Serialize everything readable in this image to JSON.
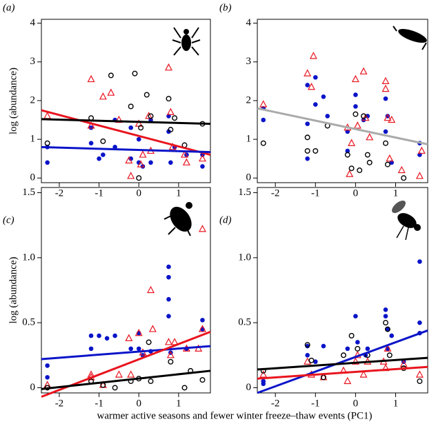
{
  "xlabel": "warmer active seasons and fewer winter freeze–thaw events (PC1)",
  "chart_data": [
    {
      "type": "scatter",
      "title": "(a)",
      "ylabel": "log (abundance)",
      "xlim": [
        -2.45,
        1.8
      ],
      "ylim": [
        -0.12,
        4.1
      ],
      "xticks": [
        -2,
        -1,
        0,
        1
      ],
      "yticks": [
        0,
        1,
        2,
        3,
        4
      ],
      "series": [
        {
          "marker": "circle-filled",
          "color": "#0a14c8",
          "x": [
            -2.3,
            -2.3,
            -1.2,
            -1.2,
            -1.0,
            -0.9,
            -0.6,
            -0.6,
            -0.2,
            -0.2,
            0,
            0,
            0.1,
            0.3,
            0.3,
            0.75,
            0.75,
            0.8,
            0.9,
            1.2,
            1.6,
            1.6
          ],
          "values": [
            0.8,
            0.4,
            1.3,
            0.9,
            0.5,
            0.6,
            0.8,
            1.5,
            1.3,
            0.5,
            1.0,
            0.4,
            0.3,
            1.5,
            0.4,
            1.6,
            1.2,
            0.4,
            0.8,
            0.6,
            0.3,
            0.6
          ]
        },
        {
          "marker": "triangle",
          "color": "#e8141e",
          "x": [
            -2.3,
            -1.2,
            -1.2,
            -0.9,
            -0.7,
            -0.5,
            -0.25,
            -0.2,
            0,
            0.1,
            0.25,
            0.3,
            0.75,
            0.8,
            0.85,
            1.15,
            1.2,
            1.6,
            0.05
          ],
          "values": [
            1.6,
            2.55,
            1.35,
            2.1,
            2.2,
            1.5,
            0.45,
            0.05,
            1.4,
            0.6,
            1.6,
            0.7,
            2.85,
            1.7,
            0.8,
            0.6,
            0.4,
            0.5,
            0.35
          ]
        },
        {
          "marker": "circle-open",
          "color": "#000000",
          "x": [
            -2.3,
            -1.2,
            -0.9,
            -0.7,
            -0.2,
            -0.1,
            0.05,
            0.2,
            0.3,
            0.75,
            0.8,
            0.9,
            1.15,
            1.6,
            0
          ],
          "values": [
            0.9,
            1.55,
            0.95,
            2.65,
            1.85,
            2.7,
            1.3,
            2.15,
            1.6,
            2.05,
            1.25,
            1.55,
            0.85,
            1.4,
            0.0
          ]
        },
        {
          "marker": "line",
          "color": "#e8141e",
          "x": [
            -2.45,
            1.8
          ],
          "values": [
            1.75,
            0.6
          ]
        },
        {
          "marker": "line",
          "color": "#000000",
          "x": [
            -2.45,
            1.8
          ],
          "values": [
            1.52,
            1.4
          ]
        },
        {
          "marker": "line",
          "color": "#0a14c8",
          "x": [
            -2.45,
            1.8
          ],
          "values": [
            0.8,
            0.67
          ]
        }
      ]
    },
    {
      "type": "scatter",
      "title": "(b)",
      "xlim": [
        -2.45,
        1.8
      ],
      "ylim": [
        -0.12,
        4.1
      ],
      "xticks": [
        -2,
        -1,
        0,
        1
      ],
      "yticks": [
        0,
        1,
        2,
        3,
        4
      ],
      "series": [
        {
          "marker": "circle-filled",
          "color": "#0a14c8",
          "x": [
            -2.3,
            -2.3,
            -1.2,
            -1.2,
            -1.2,
            -1.0,
            -1.0,
            -0.8,
            -0.7,
            -0.2,
            -0.2,
            0,
            0,
            0.2,
            0.3,
            0.75,
            0.75,
            0.8,
            0.9,
            1.6,
            1.6
          ],
          "values": [
            1.8,
            1.5,
            2.4,
            1.4,
            0.5,
            2.6,
            1.9,
            2.1,
            1.6,
            1.2,
            0.7,
            2.15,
            1.85,
            1.5,
            1.6,
            2.05,
            1.2,
            1.6,
            0.4,
            0.9,
            0.6
          ]
        },
        {
          "marker": "triangle",
          "color": "#e8141e",
          "x": [
            -2.3,
            -1.2,
            -1.05,
            -1.1,
            -0.2,
            -0.15,
            -0.1,
            0,
            0.05,
            0.2,
            0.25,
            0.35,
            0.75,
            0.75,
            0.8,
            0.9,
            0.85,
            1.15,
            1.65,
            1.6
          ],
          "values": [
            1.9,
            2.7,
            3.15,
            2.35,
            1.3,
            0.1,
            0.9,
            2.55,
            1.35,
            2.75,
            1.55,
            1.05,
            2.5,
            2.3,
            1.55,
            1.5,
            0.5,
            0.2,
            0.7,
            0.05
          ]
        },
        {
          "marker": "circle-open",
          "color": "#000000",
          "x": [
            -2.3,
            -1.2,
            -1.2,
            -1.0,
            -0.7,
            -0.2,
            -0.1,
            0,
            0.1,
            0.2,
            0.3,
            0.35,
            0.75,
            0.8,
            1.2
          ],
          "values": [
            0.9,
            1.05,
            0.7,
            0.7,
            1.35,
            0.6,
            0.25,
            1.65,
            0.2,
            1.6,
            0.6,
            0.4,
            0.9,
            0.35,
            0.0
          ]
        },
        {
          "marker": "line",
          "color": "#aaaaaa",
          "x": [
            -2.45,
            1.8
          ],
          "values": [
            1.8,
            0.87
          ]
        }
      ]
    },
    {
      "type": "scatter",
      "title": "(c)",
      "ylabel": "log (abundance)",
      "xlim": [
        -2.45,
        1.8
      ],
      "ylim": [
        -0.04,
        1.54
      ],
      "xticks": [
        -2,
        -1,
        0,
        1
      ],
      "yticks": [
        0,
        0.5,
        {
          "value": 1,
          "label": "1.0"
        },
        1.5
      ],
      "series": [
        {
          "marker": "circle-filled",
          "color": "#0a14c8",
          "x": [
            -2.3,
            -2.3,
            -1.2,
            -1.2,
            -1.0,
            -0.8,
            -0.6,
            -0.2,
            0,
            0,
            0.1,
            0.3,
            0.75,
            0.75,
            0.75,
            0.75,
            0.8,
            1.2,
            1.6,
            1.6
          ],
          "values": [
            0.17,
            0.08,
            0.4,
            0.3,
            0.4,
            0.38,
            0.4,
            0.3,
            0.42,
            0.3,
            0.25,
            0.28,
            0.93,
            0.85,
            0.68,
            0.55,
            0.27,
            0.3,
            0.52,
            0.45
          ]
        },
        {
          "marker": "triangle",
          "color": "#e8141e",
          "x": [
            -2.3,
            -1.2,
            -1.2,
            -0.9,
            -0.5,
            -0.25,
            -0.2,
            0,
            0.1,
            0.3,
            0.35,
            0.75,
            0.8,
            0.9,
            1.2,
            1.5,
            1.6,
            1.6
          ],
          "values": [
            0.02,
            0.1,
            0.08,
            0.02,
            0.1,
            0.38,
            0.1,
            0.42,
            0.27,
            0.75,
            0.45,
            0.35,
            0.25,
            0.35,
            0.3,
            0.3,
            1.22,
            0.45
          ]
        },
        {
          "marker": "circle-open",
          "color": "#000000",
          "x": [
            -2.3,
            -1.2,
            -0.9,
            -0.6,
            -0.2,
            0,
            0.25,
            0.3,
            0.8,
            1.15,
            1.3,
            1.6
          ],
          "values": [
            0.0,
            0.05,
            0.02,
            0.0,
            0.05,
            0.07,
            0.35,
            0.05,
            0.2,
            0.0,
            0.13,
            0.06
          ]
        },
        {
          "marker": "line",
          "color": "#0a14c8",
          "x": [
            -2.45,
            1.8
          ],
          "values": [
            0.22,
            0.32
          ]
        },
        {
          "marker": "line",
          "color": "#e8141e",
          "x": [
            -2.45,
            1.8
          ],
          "values": [
            -0.07,
            0.43
          ]
        },
        {
          "marker": "line",
          "color": "#000000",
          "x": [
            -2.45,
            1.8
          ],
          "values": [
            -0.01,
            0.13
          ]
        }
      ]
    },
    {
      "type": "scatter",
      "title": "(d)",
      "xlim": [
        -2.45,
        1.8
      ],
      "ylim": [
        -0.04,
        1.54
      ],
      "xticks": [
        -2,
        -1,
        0,
        1
      ],
      "yticks": [
        0,
        0.5,
        {
          "value": 1,
          "label": "1.0"
        },
        1.5
      ],
      "series": [
        {
          "marker": "circle-filled",
          "color": "#0a14c8",
          "x": [
            -2.3,
            -2.3,
            -1.2,
            -1.2,
            -1.0,
            -0.8,
            -0.2,
            0,
            0.05,
            0.25,
            0.3,
            0.75,
            0.75,
            0.8,
            0.8,
            0.9,
            1.2,
            1.6,
            1.6,
            1.6
          ],
          "values": [
            0.05,
            0.03,
            0.32,
            0.25,
            0.2,
            0.32,
            0.3,
            0.55,
            0.35,
            0.25,
            0.3,
            0.6,
            0.55,
            0.45,
            0.3,
            0.4,
            0.2,
            0.97,
            0.5,
            0.42
          ]
        },
        {
          "marker": "triangle",
          "color": "#e8141e",
          "x": [
            -2.3,
            -1.2,
            -1.1,
            -0.8,
            -0.3,
            -0.2,
            0,
            0.05,
            0.2,
            0.3,
            0.7,
            0.75,
            0.8,
            1.2,
            1.6
          ],
          "values": [
            0.1,
            0.2,
            0.1,
            0.08,
            0.13,
            0.05,
            0.2,
            0.25,
            0.1,
            0.2,
            0.2,
            0.15,
            0.3,
            0.18,
            0.1
          ]
        },
        {
          "marker": "circle-open",
          "color": "#000000",
          "x": [
            -2.3,
            -1.2,
            -1.1,
            -0.8,
            -0.3,
            -0.1,
            0.05,
            0.3,
            0.75,
            0.8,
            0.85,
            1.2,
            1.6
          ],
          "values": [
            0.13,
            0.33,
            0.21,
            0.08,
            0.25,
            0.4,
            0.3,
            0.25,
            0.5,
            0.45,
            0.25,
            0.15,
            0.05
          ]
        },
        {
          "marker": "line",
          "color": "#0a14c8",
          "x": [
            -2.45,
            1.8
          ],
          "values": [
            -0.04,
            0.44
          ]
        },
        {
          "marker": "line",
          "color": "#000000",
          "x": [
            -2.45,
            1.8
          ],
          "values": [
            0.14,
            0.23
          ]
        },
        {
          "marker": "line",
          "color": "#e8141e",
          "x": [
            -2.45,
            1.8
          ],
          "values": [
            0.07,
            0.16
          ]
        }
      ]
    }
  ]
}
